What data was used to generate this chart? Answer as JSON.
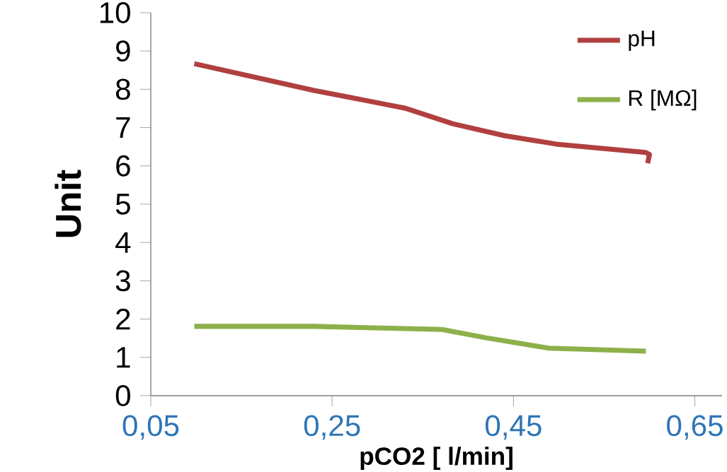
{
  "chart_data": {
    "type": "line",
    "xlabel": "pCO2 [ l/min]",
    "ylabel": "Unit",
    "xlim": [
      0.05,
      0.68
    ],
    "xticks": [
      {
        "value": 0.05,
        "label": "0,05"
      },
      {
        "value": 0.25,
        "label": "0,25"
      },
      {
        "value": 0.45,
        "label": "0,45"
      },
      {
        "value": 0.65,
        "label": "0,65"
      }
    ],
    "ylim": [
      0,
      10
    ],
    "yticks": [
      0,
      1,
      2,
      3,
      4,
      5,
      6,
      7,
      8,
      9,
      10
    ],
    "legend": "top right",
    "marker": "none",
    "line_style": "solid",
    "grid": false,
    "series": [
      {
        "name": "pH",
        "color": "#b0403f",
        "x": [
          0.098,
          0.23,
          0.33,
          0.383,
          0.44,
          0.497,
          0.596,
          0.6,
          0.598
        ],
        "values": [
          8.67,
          7.97,
          7.51,
          7.1,
          6.79,
          6.57,
          6.35,
          6.3,
          6.07
        ]
      },
      {
        "name": "R  [MΩ]",
        "color": "#8db04a",
        "x": [
          0.098,
          0.23,
          0.371,
          0.42,
          0.489,
          0.596
        ],
        "values": [
          1.81,
          1.81,
          1.73,
          1.51,
          1.24,
          1.16
        ]
      }
    ]
  }
}
